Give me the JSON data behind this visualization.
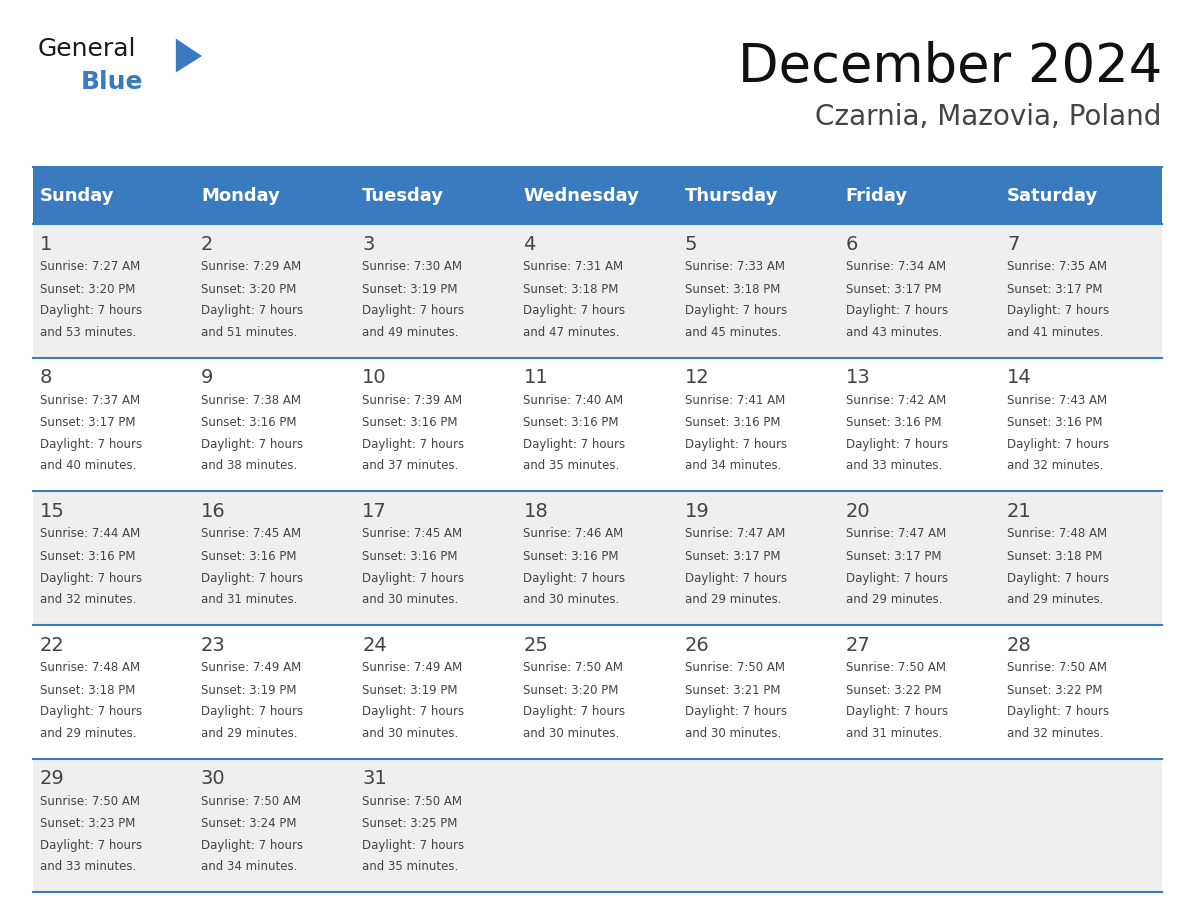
{
  "title": "December 2024",
  "subtitle": "Czarnia, Mazovia, Poland",
  "header_color": "#3a7abf",
  "header_text_color": "#ffffff",
  "cell_bg_even": "#efefef",
  "cell_bg_odd": "#ffffff",
  "border_color": "#3a7abf",
  "text_color": "#444444",
  "days_of_week": [
    "Sunday",
    "Monday",
    "Tuesday",
    "Wednesday",
    "Thursday",
    "Friday",
    "Saturday"
  ],
  "logo_black": "#1a1a1a",
  "logo_blue": "#3a7abf",
  "calendar_data": [
    [
      {
        "day": 1,
        "sunrise": "7:27 AM",
        "sunset": "3:20 PM",
        "daylight_hours": 7,
        "daylight_minutes": 53
      },
      {
        "day": 2,
        "sunrise": "7:29 AM",
        "sunset": "3:20 PM",
        "daylight_hours": 7,
        "daylight_minutes": 51
      },
      {
        "day": 3,
        "sunrise": "7:30 AM",
        "sunset": "3:19 PM",
        "daylight_hours": 7,
        "daylight_minutes": 49
      },
      {
        "day": 4,
        "sunrise": "7:31 AM",
        "sunset": "3:18 PM",
        "daylight_hours": 7,
        "daylight_minutes": 47
      },
      {
        "day": 5,
        "sunrise": "7:33 AM",
        "sunset": "3:18 PM",
        "daylight_hours": 7,
        "daylight_minutes": 45
      },
      {
        "day": 6,
        "sunrise": "7:34 AM",
        "sunset": "3:17 PM",
        "daylight_hours": 7,
        "daylight_minutes": 43
      },
      {
        "day": 7,
        "sunrise": "7:35 AM",
        "sunset": "3:17 PM",
        "daylight_hours": 7,
        "daylight_minutes": 41
      }
    ],
    [
      {
        "day": 8,
        "sunrise": "7:37 AM",
        "sunset": "3:17 PM",
        "daylight_hours": 7,
        "daylight_minutes": 40
      },
      {
        "day": 9,
        "sunrise": "7:38 AM",
        "sunset": "3:16 PM",
        "daylight_hours": 7,
        "daylight_minutes": 38
      },
      {
        "day": 10,
        "sunrise": "7:39 AM",
        "sunset": "3:16 PM",
        "daylight_hours": 7,
        "daylight_minutes": 37
      },
      {
        "day": 11,
        "sunrise": "7:40 AM",
        "sunset": "3:16 PM",
        "daylight_hours": 7,
        "daylight_minutes": 35
      },
      {
        "day": 12,
        "sunrise": "7:41 AM",
        "sunset": "3:16 PM",
        "daylight_hours": 7,
        "daylight_minutes": 34
      },
      {
        "day": 13,
        "sunrise": "7:42 AM",
        "sunset": "3:16 PM",
        "daylight_hours": 7,
        "daylight_minutes": 33
      },
      {
        "day": 14,
        "sunrise": "7:43 AM",
        "sunset": "3:16 PM",
        "daylight_hours": 7,
        "daylight_minutes": 32
      }
    ],
    [
      {
        "day": 15,
        "sunrise": "7:44 AM",
        "sunset": "3:16 PM",
        "daylight_hours": 7,
        "daylight_minutes": 32
      },
      {
        "day": 16,
        "sunrise": "7:45 AM",
        "sunset": "3:16 PM",
        "daylight_hours": 7,
        "daylight_minutes": 31
      },
      {
        "day": 17,
        "sunrise": "7:45 AM",
        "sunset": "3:16 PM",
        "daylight_hours": 7,
        "daylight_minutes": 30
      },
      {
        "day": 18,
        "sunrise": "7:46 AM",
        "sunset": "3:16 PM",
        "daylight_hours": 7,
        "daylight_minutes": 30
      },
      {
        "day": 19,
        "sunrise": "7:47 AM",
        "sunset": "3:17 PM",
        "daylight_hours": 7,
        "daylight_minutes": 29
      },
      {
        "day": 20,
        "sunrise": "7:47 AM",
        "sunset": "3:17 PM",
        "daylight_hours": 7,
        "daylight_minutes": 29
      },
      {
        "day": 21,
        "sunrise": "7:48 AM",
        "sunset": "3:18 PM",
        "daylight_hours": 7,
        "daylight_minutes": 29
      }
    ],
    [
      {
        "day": 22,
        "sunrise": "7:48 AM",
        "sunset": "3:18 PM",
        "daylight_hours": 7,
        "daylight_minutes": 29
      },
      {
        "day": 23,
        "sunrise": "7:49 AM",
        "sunset": "3:19 PM",
        "daylight_hours": 7,
        "daylight_minutes": 29
      },
      {
        "day": 24,
        "sunrise": "7:49 AM",
        "sunset": "3:19 PM",
        "daylight_hours": 7,
        "daylight_minutes": 30
      },
      {
        "day": 25,
        "sunrise": "7:50 AM",
        "sunset": "3:20 PM",
        "daylight_hours": 7,
        "daylight_minutes": 30
      },
      {
        "day": 26,
        "sunrise": "7:50 AM",
        "sunset": "3:21 PM",
        "daylight_hours": 7,
        "daylight_minutes": 30
      },
      {
        "day": 27,
        "sunrise": "7:50 AM",
        "sunset": "3:22 PM",
        "daylight_hours": 7,
        "daylight_minutes": 31
      },
      {
        "day": 28,
        "sunrise": "7:50 AM",
        "sunset": "3:22 PM",
        "daylight_hours": 7,
        "daylight_minutes": 32
      }
    ],
    [
      {
        "day": 29,
        "sunrise": "7:50 AM",
        "sunset": "3:23 PM",
        "daylight_hours": 7,
        "daylight_minutes": 33
      },
      {
        "day": 30,
        "sunrise": "7:50 AM",
        "sunset": "3:24 PM",
        "daylight_hours": 7,
        "daylight_minutes": 34
      },
      {
        "day": 31,
        "sunrise": "7:50 AM",
        "sunset": "3:25 PM",
        "daylight_hours": 7,
        "daylight_minutes": 35
      },
      null,
      null,
      null,
      null
    ]
  ]
}
